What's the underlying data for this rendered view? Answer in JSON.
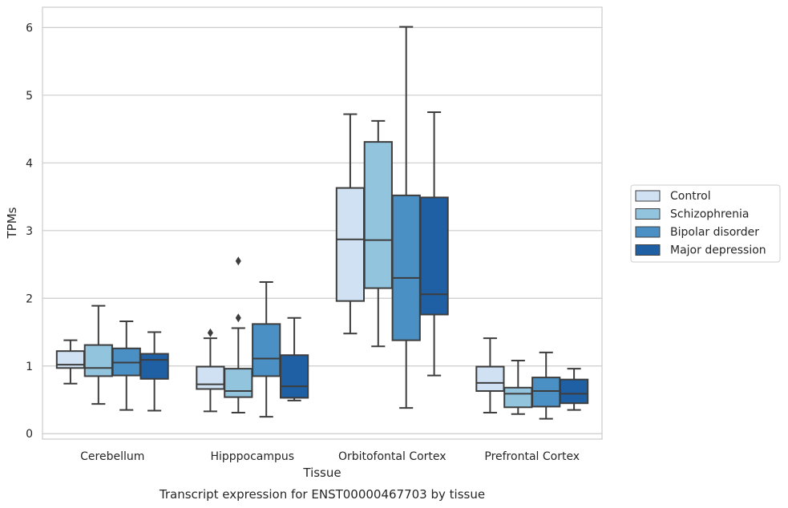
{
  "caption": "Transcript expression for ENST00000467703 by tissue",
  "chart_data": {
    "type": "box",
    "xlabel": "Tissue",
    "ylabel": "TPMs",
    "ylim": [
      -0.08,
      6.3
    ],
    "yticks": [
      0,
      1,
      2,
      3,
      4,
      5,
      6
    ],
    "grid": true,
    "legend_position": "right",
    "categories": [
      "Cerebellum",
      "Hipppocampus",
      "Orbitofontal Cortex",
      "Prefrontal Cortex"
    ],
    "series": [
      {
        "name": "Control",
        "color": "#cfe1f2",
        "boxes": [
          {
            "whislo": 0.74,
            "q1": 0.97,
            "med": 1.02,
            "q3": 1.22,
            "whishi": 1.38,
            "fliers": []
          },
          {
            "whislo": 0.33,
            "q1": 0.66,
            "med": 0.73,
            "q3": 0.99,
            "whishi": 1.41,
            "fliers": [
              1.49
            ]
          },
          {
            "whislo": 1.48,
            "q1": 1.96,
            "med": 2.87,
            "q3": 3.63,
            "whishi": 4.72,
            "fliers": []
          },
          {
            "whislo": 0.31,
            "q1": 0.63,
            "med": 0.75,
            "q3": 0.99,
            "whishi": 1.41,
            "fliers": []
          }
        ]
      },
      {
        "name": "Schizophrenia",
        "color": "#93c4de",
        "boxes": [
          {
            "whislo": 0.44,
            "q1": 0.85,
            "med": 0.97,
            "q3": 1.31,
            "whishi": 1.89,
            "fliers": []
          },
          {
            "whislo": 0.31,
            "q1": 0.54,
            "med": 0.63,
            "q3": 0.96,
            "whishi": 1.56,
            "fliers": [
              1.71,
              2.55
            ]
          },
          {
            "whislo": 1.29,
            "q1": 2.15,
            "med": 2.86,
            "q3": 4.31,
            "whishi": 4.62,
            "fliers": []
          },
          {
            "whislo": 0.29,
            "q1": 0.39,
            "med": 0.59,
            "q3": 0.68,
            "whishi": 1.08,
            "fliers": []
          }
        ]
      },
      {
        "name": "Bipolar disorder",
        "color": "#4a90c4",
        "boxes": [
          {
            "whislo": 0.35,
            "q1": 0.86,
            "med": 1.05,
            "q3": 1.26,
            "whishi": 1.66,
            "fliers": []
          },
          {
            "whislo": 0.25,
            "q1": 0.85,
            "med": 1.11,
            "q3": 1.62,
            "whishi": 2.24,
            "fliers": []
          },
          {
            "whislo": 0.38,
            "q1": 1.38,
            "med": 2.3,
            "q3": 3.52,
            "whishi": 6.01,
            "fliers": []
          },
          {
            "whislo": 0.22,
            "q1": 0.4,
            "med": 0.63,
            "q3": 0.83,
            "whishi": 1.2,
            "fliers": []
          }
        ]
      },
      {
        "name": "Major depression",
        "color": "#1f5fa3",
        "boxes": [
          {
            "whislo": 0.34,
            "q1": 0.81,
            "med": 1.09,
            "q3": 1.18,
            "whishi": 1.5,
            "fliers": []
          },
          {
            "whislo": 0.49,
            "q1": 0.53,
            "med": 0.7,
            "q3": 1.16,
            "whishi": 1.71,
            "fliers": []
          },
          {
            "whislo": 0.86,
            "q1": 1.76,
            "med": 2.06,
            "q3": 3.49,
            "whishi": 4.75,
            "fliers": []
          },
          {
            "whislo": 0.35,
            "q1": 0.45,
            "med": 0.59,
            "q3": 0.8,
            "whishi": 0.96,
            "fliers": []
          }
        ]
      }
    ]
  }
}
